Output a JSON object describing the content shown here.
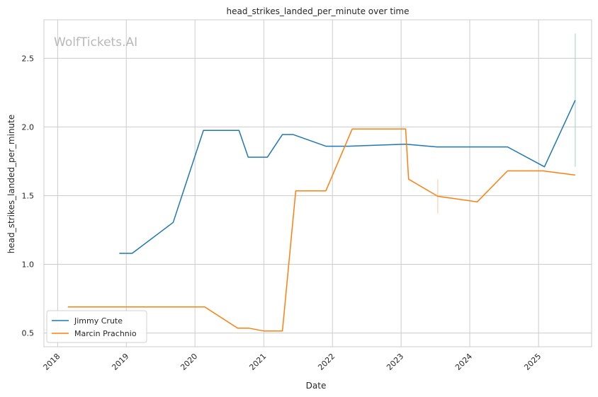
{
  "chart_data": {
    "type": "line",
    "title": "head_strikes_landed_per_minute over time",
    "xlabel": "Date",
    "ylabel": "head_strikes_landed_per_minute",
    "watermark": "WolfTickets.AI",
    "x_ticks": [
      "2018",
      "2019",
      "2020",
      "2021",
      "2022",
      "2023",
      "2024",
      "2025"
    ],
    "y_ticks": [
      "0.5",
      "1.0",
      "1.5",
      "2.0",
      "2.5"
    ],
    "xlim": [
      "2017-10-20",
      "2025-10-10"
    ],
    "ylim": [
      0.4,
      2.78
    ],
    "grid": true,
    "legend_position": "lower-left",
    "series": [
      {
        "name": "Jimmy Crute",
        "color": "#1f77b4",
        "points": [
          [
            "2018-11-25",
            1.08
          ],
          [
            "2019-02-01",
            1.08
          ],
          [
            "2019-09-07",
            1.305
          ],
          [
            "2020-02-15",
            1.975
          ],
          [
            "2020-08-22",
            1.975
          ],
          [
            "2020-10-10",
            1.78
          ],
          [
            "2021-01-20",
            1.78
          ],
          [
            "2021-04-10",
            1.945
          ],
          [
            "2021-06-05",
            1.945
          ],
          [
            "2021-11-27",
            1.86
          ],
          [
            "2022-03-26",
            1.86
          ],
          [
            "2023-01-25",
            1.875
          ],
          [
            "2023-07-10",
            1.855
          ],
          [
            "2024-07-20",
            1.855
          ],
          [
            "2025-02-01",
            1.71
          ],
          [
            "2025-07-15",
            2.195
          ]
        ]
      },
      {
        "name": "Marcin Prachnio",
        "color": "#ff7f0e",
        "points": [
          [
            "2018-02-24",
            0.69
          ],
          [
            "2020-02-22",
            0.69
          ],
          [
            "2020-08-15",
            0.535
          ],
          [
            "2020-10-15",
            0.535
          ],
          [
            "2021-01-01",
            0.515
          ],
          [
            "2021-04-10",
            0.515
          ],
          [
            "2021-06-20",
            1.535
          ],
          [
            "2021-11-27",
            1.535
          ],
          [
            "2022-04-16",
            1.985
          ],
          [
            "2023-01-25",
            1.985
          ],
          [
            "2023-02-10",
            1.62
          ],
          [
            "2023-07-15",
            1.495
          ],
          [
            "2024-02-10",
            1.455
          ],
          [
            "2024-07-20",
            1.68
          ],
          [
            "2025-01-25",
            1.68
          ],
          [
            "2025-07-15",
            1.65
          ]
        ]
      }
    ],
    "error_bars": [
      {
        "series": "Jimmy Crute",
        "x": "2025-07-15",
        "low": 1.71,
        "high": 2.68,
        "color": "#9bd3c8"
      },
      {
        "series": "Marcin Prachnio",
        "x": "2023-07-15",
        "low": 1.37,
        "high": 1.62,
        "color": "#f5c9a6"
      }
    ]
  }
}
